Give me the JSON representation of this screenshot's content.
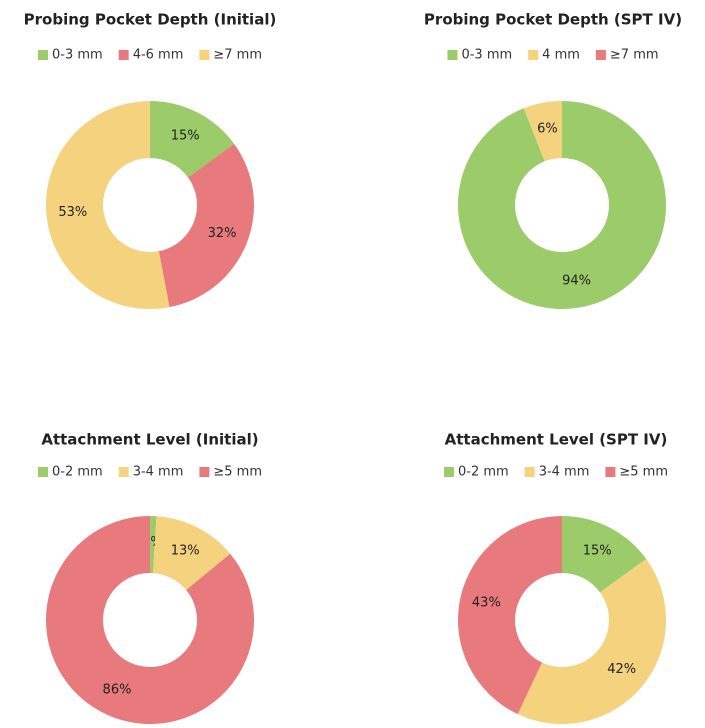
{
  "chart_data": [
    {
      "type": "donut",
      "title": "Probing Pocket Depth (Initial)",
      "categories": [
        "0-3 mm",
        "4-6 mm",
        "≥7 mm"
      ],
      "colors": [
        "#9ccb6a",
        "#e8797d",
        "#f5d27e"
      ],
      "values": [
        15,
        32,
        53
      ],
      "value_labels": [
        "15%",
        "32%",
        "53%"
      ]
    },
    {
      "type": "donut",
      "title": "Probing Pocket Depth (SPT IV)",
      "categories": [
        "0-3 mm",
        "4 mm",
        "≥7 mm"
      ],
      "colors": [
        "#9ccb6a",
        "#f5d27e",
        "#e8797d"
      ],
      "values": [
        94,
        6,
        0
      ],
      "value_labels": [
        "94%",
        "6%",
        null
      ]
    },
    {
      "type": "donut",
      "title": "Attachment Level (Initial)",
      "categories": [
        "0-2 mm",
        "3-4 mm",
        "≥5 mm"
      ],
      "colors": [
        "#9ccb6a",
        "#f5d27e",
        "#e8797d"
      ],
      "values": [
        1,
        13,
        86
      ],
      "value_labels": [
        "1%",
        "13%",
        "86%"
      ]
    },
    {
      "type": "donut",
      "title": "Attachment Level (SPT IV)",
      "categories": [
        "0-2 mm",
        "3-4 mm",
        "≥5 mm"
      ],
      "colors": [
        "#9ccb6a",
        "#f5d27e",
        "#e8797d"
      ],
      "values": [
        15,
        42,
        43
      ],
      "value_labels": [
        "15%",
        "42%",
        "43%"
      ]
    }
  ]
}
